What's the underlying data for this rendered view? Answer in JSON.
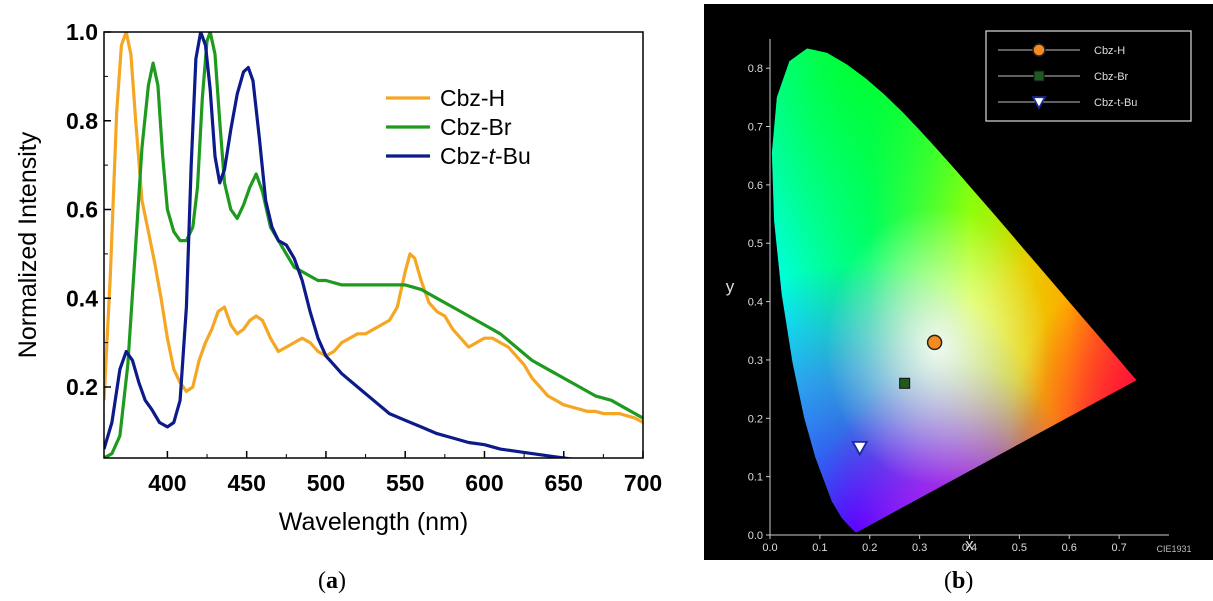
{
  "panel_a": {
    "caption": "a",
    "chart_data": {
      "type": "line",
      "xlabel": "Wavelength (nm)",
      "ylabel": "Normalized Intensity",
      "xlim": [
        360,
        700
      ],
      "ylim": [
        0.04,
        1.0
      ],
      "xticks": [
        400,
        450,
        500,
        550,
        600,
        650,
        700
      ],
      "yticks": [
        0.2,
        0.4,
        0.6,
        0.8,
        1.0
      ],
      "ytick_labels": [
        "0.2",
        "0.4",
        "0.6",
        "0.8",
        "1.0"
      ],
      "legend": {
        "placement": "top-right"
      },
      "series": [
        {
          "name": "Cbz-H",
          "color": "#f5a623",
          "x": [
            360,
            364,
            368,
            371,
            374,
            377,
            380,
            384,
            388,
            392,
            396,
            400,
            404,
            408,
            412,
            416,
            420,
            424,
            428,
            432,
            436,
            440,
            444,
            448,
            452,
            456,
            460,
            465,
            470,
            475,
            480,
            485,
            490,
            495,
            500,
            505,
            510,
            515,
            520,
            525,
            530,
            535,
            540,
            545,
            550,
            553,
            556,
            560,
            565,
            570,
            575,
            580,
            585,
            590,
            595,
            600,
            605,
            610,
            615,
            620,
            625,
            630,
            635,
            640,
            645,
            650,
            655,
            660,
            665,
            670,
            675,
            680,
            685,
            690,
            695,
            700
          ],
          "y": [
            0.17,
            0.45,
            0.82,
            0.97,
            1.0,
            0.95,
            0.8,
            0.62,
            0.55,
            0.48,
            0.4,
            0.31,
            0.24,
            0.21,
            0.19,
            0.2,
            0.26,
            0.3,
            0.33,
            0.37,
            0.38,
            0.34,
            0.32,
            0.33,
            0.35,
            0.36,
            0.35,
            0.31,
            0.28,
            0.29,
            0.3,
            0.31,
            0.3,
            0.28,
            0.27,
            0.28,
            0.3,
            0.31,
            0.32,
            0.32,
            0.33,
            0.34,
            0.35,
            0.38,
            0.46,
            0.5,
            0.49,
            0.44,
            0.39,
            0.37,
            0.36,
            0.33,
            0.31,
            0.29,
            0.3,
            0.31,
            0.31,
            0.3,
            0.29,
            0.27,
            0.25,
            0.22,
            0.2,
            0.18,
            0.17,
            0.16,
            0.155,
            0.15,
            0.145,
            0.145,
            0.14,
            0.14,
            0.14,
            0.135,
            0.13,
            0.12
          ]
        },
        {
          "name": "Cbz-Br",
          "color": "#1e9b1e",
          "x": [
            360,
            365,
            370,
            375,
            380,
            384,
            388,
            391,
            394,
            397,
            400,
            404,
            408,
            412,
            416,
            419,
            422,
            425,
            427,
            430,
            433,
            436,
            440,
            444,
            448,
            452,
            456,
            460,
            465,
            470,
            475,
            480,
            485,
            490,
            495,
            500,
            510,
            520,
            530,
            540,
            550,
            560,
            570,
            580,
            590,
            600,
            610,
            620,
            630,
            640,
            650,
            660,
            670,
            680,
            690,
            700
          ],
          "y": [
            0.04,
            0.05,
            0.09,
            0.25,
            0.52,
            0.74,
            0.88,
            0.93,
            0.88,
            0.72,
            0.6,
            0.55,
            0.53,
            0.53,
            0.56,
            0.65,
            0.85,
            0.98,
            1.0,
            0.95,
            0.8,
            0.66,
            0.6,
            0.58,
            0.61,
            0.65,
            0.68,
            0.64,
            0.56,
            0.53,
            0.5,
            0.47,
            0.46,
            0.45,
            0.44,
            0.44,
            0.43,
            0.43,
            0.43,
            0.43,
            0.43,
            0.42,
            0.4,
            0.38,
            0.36,
            0.34,
            0.32,
            0.29,
            0.26,
            0.24,
            0.22,
            0.2,
            0.18,
            0.17,
            0.15,
            0.13
          ]
        },
        {
          "name": "Cbz-t-Bu",
          "color": "#0c1a8a",
          "x": [
            360,
            365,
            370,
            374,
            378,
            382,
            386,
            390,
            395,
            400,
            404,
            408,
            412,
            415,
            418,
            421,
            424,
            427,
            430,
            433,
            436,
            440,
            444,
            448,
            451,
            454,
            458,
            462,
            466,
            470,
            475,
            480,
            485,
            490,
            495,
            500,
            505,
            510,
            520,
            530,
            540,
            550,
            560,
            570,
            580,
            590,
            600,
            610,
            620,
            630,
            640,
            650,
            660,
            670,
            680,
            690,
            700
          ],
          "y": [
            0.06,
            0.12,
            0.24,
            0.28,
            0.26,
            0.21,
            0.17,
            0.15,
            0.12,
            0.11,
            0.12,
            0.17,
            0.38,
            0.7,
            0.94,
            1.0,
            0.97,
            0.87,
            0.72,
            0.66,
            0.69,
            0.78,
            0.86,
            0.91,
            0.92,
            0.89,
            0.76,
            0.62,
            0.56,
            0.53,
            0.52,
            0.49,
            0.44,
            0.37,
            0.31,
            0.27,
            0.25,
            0.23,
            0.2,
            0.17,
            0.14,
            0.125,
            0.11,
            0.095,
            0.085,
            0.075,
            0.07,
            0.06,
            0.055,
            0.05,
            0.045,
            0.04,
            0.035,
            0.032,
            0.03,
            0.03,
            0.03
          ]
        }
      ]
    }
  },
  "panel_b": {
    "caption": "b",
    "watermark": "CIE1931",
    "chart_data": {
      "type": "scatter",
      "xlabel": "x",
      "ylabel": "y",
      "xlim": [
        0.0,
        0.8
      ],
      "ylim": [
        0.0,
        0.85
      ],
      "xticks": [
        0.0,
        0.1,
        0.2,
        0.3,
        0.4,
        0.5,
        0.6,
        0.7
      ],
      "xtick_labels": [
        "0.0",
        "0.1",
        "0.2",
        "0.3",
        "0.4",
        "0.5",
        "0.6",
        "0.7"
      ],
      "yticks": [
        0.0,
        0.1,
        0.2,
        0.3,
        0.4,
        0.5,
        0.6,
        0.7,
        0.8
      ],
      "ytick_labels": [
        "0.0",
        "0.1",
        "0.2",
        "0.3",
        "0.4",
        "0.5",
        "0.6",
        "0.7",
        "0.8"
      ],
      "background": "#000000",
      "legend": {
        "placement": "top-right"
      },
      "series": [
        {
          "name": "Cbz-H",
          "marker": "circle",
          "color": "#f58a1e",
          "x": 0.33,
          "y": 0.33
        },
        {
          "name": "Cbz-Br",
          "marker": "square",
          "color": "#1f5a1f",
          "x": 0.27,
          "y": 0.26
        },
        {
          "name": "Cbz-t-Bu",
          "marker": "triangle-down",
          "color": "#1a2a9a",
          "x": 0.18,
          "y": 0.15
        }
      ]
    }
  }
}
